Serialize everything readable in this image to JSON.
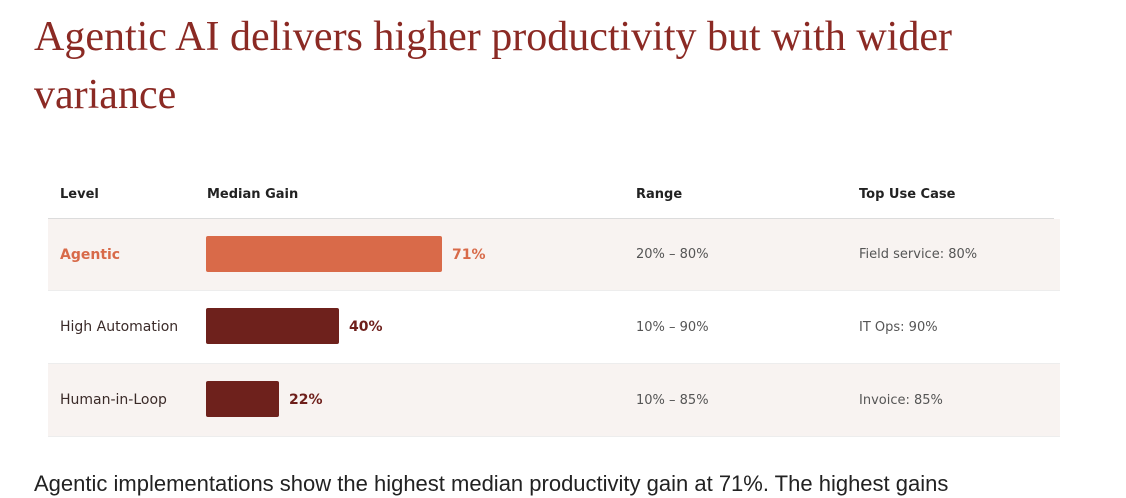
{
  "title": "Agentic AI delivers higher productivity but with wider variance",
  "table": {
    "headers": {
      "level": "Level",
      "median_gain": "Median Gain",
      "range": "Range",
      "top_use_case": "Top Use Case"
    },
    "rows": [
      {
        "level": "Agentic",
        "gain_value": 71,
        "gain_label": "71%",
        "range": "20% – 80%",
        "top_use_case": "Field service: 80%",
        "bar_color": "#d96a49"
      },
      {
        "level": "High Automation",
        "gain_value": 40,
        "gain_label": "40%",
        "range": "10% – 90%",
        "top_use_case": "IT Ops: 90%",
        "bar_color": "#6e211c"
      },
      {
        "level": "Human-in-Loop",
        "gain_value": 22,
        "gain_label": "22%",
        "range": "10% – 85%",
        "top_use_case": "Invoice: 85%",
        "bar_color": "#6e211c"
      }
    ]
  },
  "chart_data": {
    "type": "bar",
    "categories": [
      "Agentic",
      "High Automation",
      "Human-in-Loop"
    ],
    "values": [
      71,
      40,
      22
    ],
    "title": "Median Gain",
    "xlabel": "",
    "ylabel": "Median Gain (%)",
    "xlim": [
      0,
      100
    ]
  },
  "footer": {
    "text": "Agentic implementations show the highest median productivity gain at 71%. The highest gains"
  }
}
